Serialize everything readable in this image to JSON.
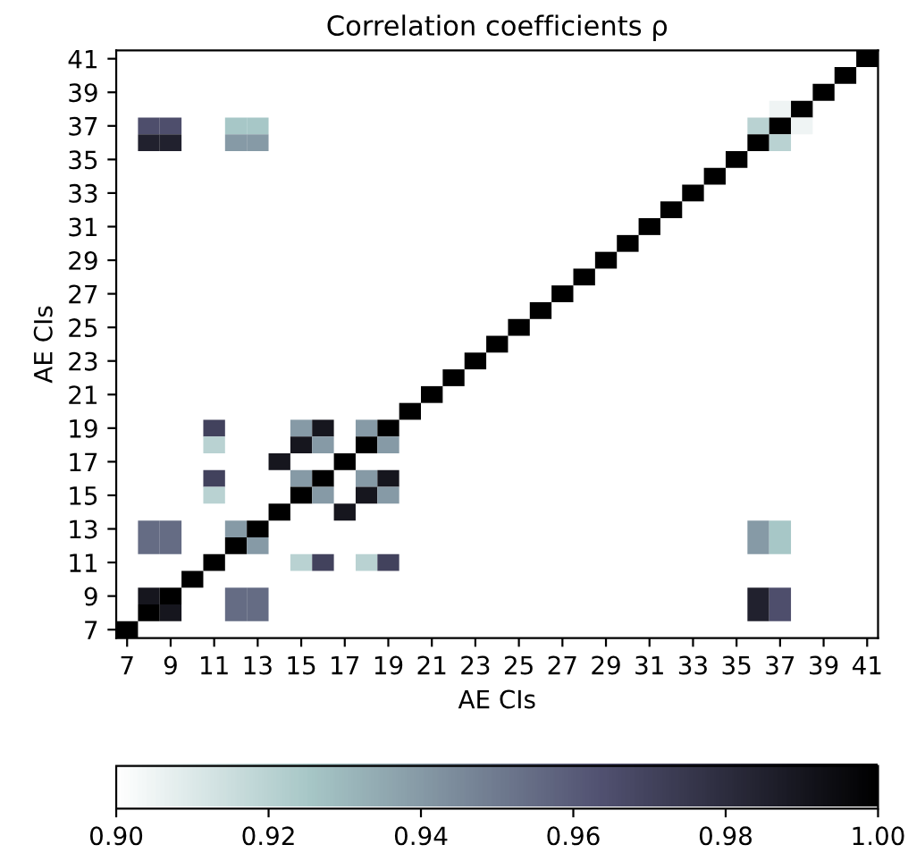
{
  "chart_data": {
    "type": "heatmap",
    "title": "Correlation coefficients ρ",
    "xlabel": "AE CIs",
    "ylabel": "AE CIs",
    "categories": [
      "7",
      null,
      "9",
      null,
      "11",
      null,
      "13",
      null,
      "15",
      null,
      "17",
      null,
      "19",
      null,
      "21",
      null,
      "23",
      null,
      "25",
      null,
      "27",
      null,
      "29",
      null,
      "31",
      null,
      "33",
      null,
      "35",
      null,
      "37",
      null,
      "39",
      null,
      "41"
    ],
    "y_categories": [
      "41",
      null,
      "39",
      null,
      "37",
      null,
      "35",
      null,
      "33",
      null,
      "31",
      null,
      "29",
      null,
      "27",
      null,
      "25",
      null,
      "23",
      null,
      "21",
      null,
      "19",
      null,
      "17",
      null,
      "15",
      null,
      "13",
      null,
      "11",
      null,
      "9",
      null,
      "7"
    ],
    "cells": [
      [
        null,
        null,
        null,
        null,
        null,
        null,
        null,
        null,
        null,
        null,
        null,
        null,
        null,
        null,
        null,
        null,
        null,
        null,
        null,
        null,
        null,
        null,
        null,
        null,
        null,
        null,
        null,
        null,
        null,
        null,
        null,
        null,
        null,
        null,
        1.0
      ],
      [
        null,
        null,
        null,
        null,
        null,
        null,
        null,
        null,
        null,
        null,
        null,
        null,
        null,
        null,
        null,
        null,
        null,
        null,
        null,
        null,
        null,
        null,
        null,
        null,
        null,
        null,
        null,
        null,
        null,
        null,
        null,
        null,
        null,
        1.0,
        null
      ],
      [
        null,
        null,
        null,
        null,
        null,
        null,
        null,
        null,
        null,
        null,
        null,
        null,
        null,
        null,
        null,
        null,
        null,
        null,
        null,
        null,
        null,
        null,
        null,
        null,
        null,
        null,
        null,
        null,
        null,
        null,
        null,
        null,
        1.0,
        null,
        null
      ],
      [
        null,
        null,
        null,
        null,
        null,
        null,
        null,
        null,
        null,
        null,
        null,
        null,
        null,
        null,
        null,
        null,
        null,
        null,
        null,
        null,
        null,
        null,
        null,
        null,
        null,
        null,
        null,
        null,
        null,
        null,
        0.905,
        1.0,
        null,
        null,
        null
      ],
      [
        null,
        0.965,
        0.965,
        null,
        null,
        0.925,
        0.925,
        null,
        null,
        null,
        null,
        null,
        null,
        null,
        null,
        null,
        null,
        null,
        null,
        null,
        null,
        null,
        null,
        null,
        null,
        null,
        null,
        null,
        null,
        0.92,
        1.0,
        0.905,
        null,
        null,
        null
      ],
      [
        null,
        0.985,
        0.985,
        null,
        null,
        0.94,
        0.94,
        null,
        null,
        null,
        null,
        null,
        null,
        null,
        null,
        null,
        null,
        null,
        null,
        null,
        null,
        null,
        null,
        null,
        null,
        null,
        null,
        null,
        null,
        1.0,
        0.92,
        null,
        null,
        null,
        null
      ],
      [
        null,
        null,
        null,
        null,
        null,
        null,
        null,
        null,
        null,
        null,
        null,
        null,
        null,
        null,
        null,
        null,
        null,
        null,
        null,
        null,
        null,
        null,
        null,
        null,
        null,
        null,
        null,
        null,
        1.0,
        null,
        null,
        null,
        null,
        null,
        null
      ],
      [
        null,
        null,
        null,
        null,
        null,
        null,
        null,
        null,
        null,
        null,
        null,
        null,
        null,
        null,
        null,
        null,
        null,
        null,
        null,
        null,
        null,
        null,
        null,
        null,
        null,
        null,
        null,
        1.0,
        null,
        null,
        null,
        null,
        null,
        null,
        null
      ],
      [
        null,
        null,
        null,
        null,
        null,
        null,
        null,
        null,
        null,
        null,
        null,
        null,
        null,
        null,
        null,
        null,
        null,
        null,
        null,
        null,
        null,
        null,
        null,
        null,
        null,
        null,
        1.0,
        null,
        null,
        null,
        null,
        null,
        null,
        null,
        null
      ],
      [
        null,
        null,
        null,
        null,
        null,
        null,
        null,
        null,
        null,
        null,
        null,
        null,
        null,
        null,
        null,
        null,
        null,
        null,
        null,
        null,
        null,
        null,
        null,
        null,
        null,
        1.0,
        null,
        null,
        null,
        null,
        null,
        null,
        null,
        null,
        null
      ],
      [
        null,
        null,
        null,
        null,
        null,
        null,
        null,
        null,
        null,
        null,
        null,
        null,
        null,
        null,
        null,
        null,
        null,
        null,
        null,
        null,
        null,
        null,
        null,
        null,
        1.0,
        null,
        null,
        null,
        null,
        null,
        null,
        null,
        null,
        null,
        null
      ],
      [
        null,
        null,
        null,
        null,
        null,
        null,
        null,
        null,
        null,
        null,
        null,
        null,
        null,
        null,
        null,
        null,
        null,
        null,
        null,
        null,
        null,
        null,
        null,
        1.0,
        null,
        null,
        null,
        null,
        null,
        null,
        null,
        null,
        null,
        null,
        null
      ],
      [
        null,
        null,
        null,
        null,
        null,
        null,
        null,
        null,
        null,
        null,
        null,
        null,
        null,
        null,
        null,
        null,
        null,
        null,
        null,
        null,
        null,
        null,
        1.0,
        null,
        null,
        null,
        null,
        null,
        null,
        null,
        null,
        null,
        null,
        null,
        null
      ],
      [
        null,
        null,
        null,
        null,
        null,
        null,
        null,
        null,
        null,
        null,
        null,
        null,
        null,
        null,
        null,
        null,
        null,
        null,
        null,
        null,
        null,
        1.0,
        null,
        null,
        null,
        null,
        null,
        null,
        null,
        null,
        null,
        null,
        null,
        null,
        null
      ],
      [
        null,
        null,
        null,
        null,
        null,
        null,
        null,
        null,
        null,
        null,
        null,
        null,
        null,
        null,
        null,
        null,
        null,
        null,
        null,
        null,
        1.0,
        null,
        null,
        null,
        null,
        null,
        null,
        null,
        null,
        null,
        null,
        null,
        null,
        null,
        null
      ],
      [
        null,
        null,
        null,
        null,
        null,
        null,
        null,
        null,
        null,
        null,
        null,
        null,
        null,
        null,
        null,
        null,
        null,
        null,
        null,
        1.0,
        null,
        null,
        null,
        null,
        null,
        null,
        null,
        null,
        null,
        null,
        null,
        null,
        null,
        null,
        null
      ],
      [
        null,
        null,
        null,
        null,
        null,
        null,
        null,
        null,
        null,
        null,
        null,
        null,
        null,
        null,
        null,
        null,
        null,
        null,
        1.0,
        null,
        null,
        null,
        null,
        null,
        null,
        null,
        null,
        null,
        null,
        null,
        null,
        null,
        null,
        null,
        null
      ],
      [
        null,
        null,
        null,
        null,
        null,
        null,
        null,
        null,
        null,
        null,
        null,
        null,
        null,
        null,
        null,
        null,
        null,
        1.0,
        null,
        null,
        null,
        null,
        null,
        null,
        null,
        null,
        null,
        null,
        null,
        null,
        null,
        null,
        null,
        null,
        null
      ],
      [
        null,
        null,
        null,
        null,
        null,
        null,
        null,
        null,
        null,
        null,
        null,
        null,
        null,
        null,
        null,
        null,
        1.0,
        null,
        null,
        null,
        null,
        null,
        null,
        null,
        null,
        null,
        null,
        null,
        null,
        null,
        null,
        null,
        null,
        null,
        null
      ],
      [
        null,
        null,
        null,
        null,
        null,
        null,
        null,
        null,
        null,
        null,
        null,
        null,
        null,
        null,
        null,
        1.0,
        null,
        null,
        null,
        null,
        null,
        null,
        null,
        null,
        null,
        null,
        null,
        null,
        null,
        null,
        null,
        null,
        null,
        null,
        null
      ],
      [
        null,
        null,
        null,
        null,
        null,
        null,
        null,
        null,
        null,
        null,
        null,
        null,
        null,
        null,
        1.0,
        null,
        null,
        null,
        null,
        null,
        null,
        null,
        null,
        null,
        null,
        null,
        null,
        null,
        null,
        null,
        null,
        null,
        null,
        null,
        null
      ],
      [
        null,
        null,
        null,
        null,
        null,
        null,
        null,
        null,
        null,
        null,
        null,
        null,
        null,
        1.0,
        null,
        null,
        null,
        null,
        null,
        null,
        null,
        null,
        null,
        null,
        null,
        null,
        null,
        null,
        null,
        null,
        null,
        null,
        null,
        null,
        null
      ],
      [
        null,
        null,
        null,
        null,
        0.97,
        null,
        null,
        null,
        0.94,
        0.99,
        null,
        0.94,
        1.0,
        null,
        null,
        null,
        null,
        null,
        null,
        null,
        null,
        null,
        null,
        null,
        null,
        null,
        null,
        null,
        null,
        null,
        null,
        null,
        null,
        null,
        null
      ],
      [
        null,
        null,
        null,
        null,
        0.92,
        null,
        null,
        null,
        0.99,
        0.94,
        null,
        1.0,
        0.94,
        null,
        null,
        null,
        null,
        null,
        null,
        null,
        null,
        null,
        null,
        null,
        null,
        null,
        null,
        null,
        null,
        null,
        null,
        null,
        null,
        null,
        null
      ],
      [
        null,
        null,
        null,
        null,
        null,
        null,
        null,
        0.99,
        null,
        null,
        1.0,
        null,
        null,
        null,
        null,
        null,
        null,
        null,
        null,
        null,
        null,
        null,
        null,
        null,
        null,
        null,
        null,
        null,
        null,
        null,
        null,
        null,
        null,
        null,
        null
      ],
      [
        null,
        null,
        null,
        null,
        0.97,
        null,
        null,
        null,
        0.94,
        1.0,
        null,
        0.94,
        0.99,
        null,
        null,
        null,
        null,
        null,
        null,
        null,
        null,
        null,
        null,
        null,
        null,
        null,
        null,
        null,
        null,
        null,
        null,
        null,
        null,
        null,
        null
      ],
      [
        null,
        null,
        null,
        null,
        0.92,
        null,
        null,
        null,
        1.0,
        0.94,
        null,
        0.99,
        0.94,
        null,
        null,
        null,
        null,
        null,
        null,
        null,
        null,
        null,
        null,
        null,
        null,
        null,
        null,
        null,
        null,
        null,
        null,
        null,
        null,
        null,
        null
      ],
      [
        null,
        null,
        null,
        null,
        null,
        null,
        null,
        1.0,
        null,
        null,
        0.99,
        null,
        null,
        null,
        null,
        null,
        null,
        null,
        null,
        null,
        null,
        null,
        null,
        null,
        null,
        null,
        null,
        null,
        null,
        null,
        null,
        null,
        null,
        null,
        null
      ],
      [
        null,
        0.955,
        0.955,
        null,
        null,
        0.94,
        1.0,
        null,
        null,
        null,
        null,
        null,
        null,
        null,
        null,
        null,
        null,
        null,
        null,
        null,
        null,
        null,
        null,
        null,
        null,
        null,
        null,
        null,
        null,
        0.94,
        0.925,
        null,
        null,
        null,
        null
      ],
      [
        null,
        0.955,
        0.955,
        null,
        null,
        1.0,
        0.94,
        null,
        null,
        null,
        null,
        null,
        null,
        null,
        null,
        null,
        null,
        null,
        null,
        null,
        null,
        null,
        null,
        null,
        null,
        null,
        null,
        null,
        null,
        0.94,
        0.925,
        null,
        null,
        null,
        null
      ],
      [
        null,
        null,
        null,
        null,
        1.0,
        null,
        null,
        null,
        0.92,
        0.97,
        null,
        0.92,
        0.97,
        null,
        null,
        null,
        null,
        null,
        null,
        null,
        null,
        null,
        null,
        null,
        null,
        null,
        null,
        null,
        null,
        null,
        null,
        null,
        null,
        null,
        null
      ],
      [
        null,
        null,
        null,
        1.0,
        null,
        null,
        null,
        null,
        null,
        null,
        null,
        null,
        null,
        null,
        null,
        null,
        null,
        null,
        null,
        null,
        null,
        null,
        null,
        null,
        null,
        null,
        null,
        null,
        null,
        null,
        null,
        null,
        null,
        null,
        null
      ],
      [
        null,
        0.99,
        1.0,
        null,
        null,
        0.955,
        0.955,
        null,
        null,
        null,
        null,
        null,
        null,
        null,
        null,
        null,
        null,
        null,
        null,
        null,
        null,
        null,
        null,
        null,
        null,
        null,
        null,
        null,
        null,
        0.985,
        0.965,
        null,
        null,
        null,
        null
      ],
      [
        null,
        1.0,
        0.99,
        null,
        null,
        0.955,
        0.955,
        null,
        null,
        null,
        null,
        null,
        null,
        null,
        null,
        null,
        null,
        null,
        null,
        null,
        null,
        null,
        null,
        null,
        null,
        null,
        null,
        null,
        null,
        0.985,
        0.965,
        null,
        null,
        null,
        null
      ],
      [
        1.0,
        null,
        null,
        null,
        null,
        null,
        null,
        null,
        null,
        null,
        null,
        null,
        null,
        null,
        null,
        null,
        null,
        null,
        null,
        null,
        null,
        null,
        null,
        null,
        null,
        null,
        null,
        null,
        null,
        null,
        null,
        null,
        null,
        null,
        null
      ]
    ],
    "clim": [
      0.9,
      1.0
    ],
    "cticks": [
      {
        "value": 0.9,
        "label": "0.90"
      },
      {
        "value": 0.92,
        "label": "0.92"
      },
      {
        "value": 0.94,
        "label": "0.94"
      },
      {
        "value": 0.96,
        "label": "0.96"
      },
      {
        "value": 0.98,
        "label": "0.98"
      },
      {
        "value": 1.0,
        "label": "1.00"
      }
    ]
  }
}
